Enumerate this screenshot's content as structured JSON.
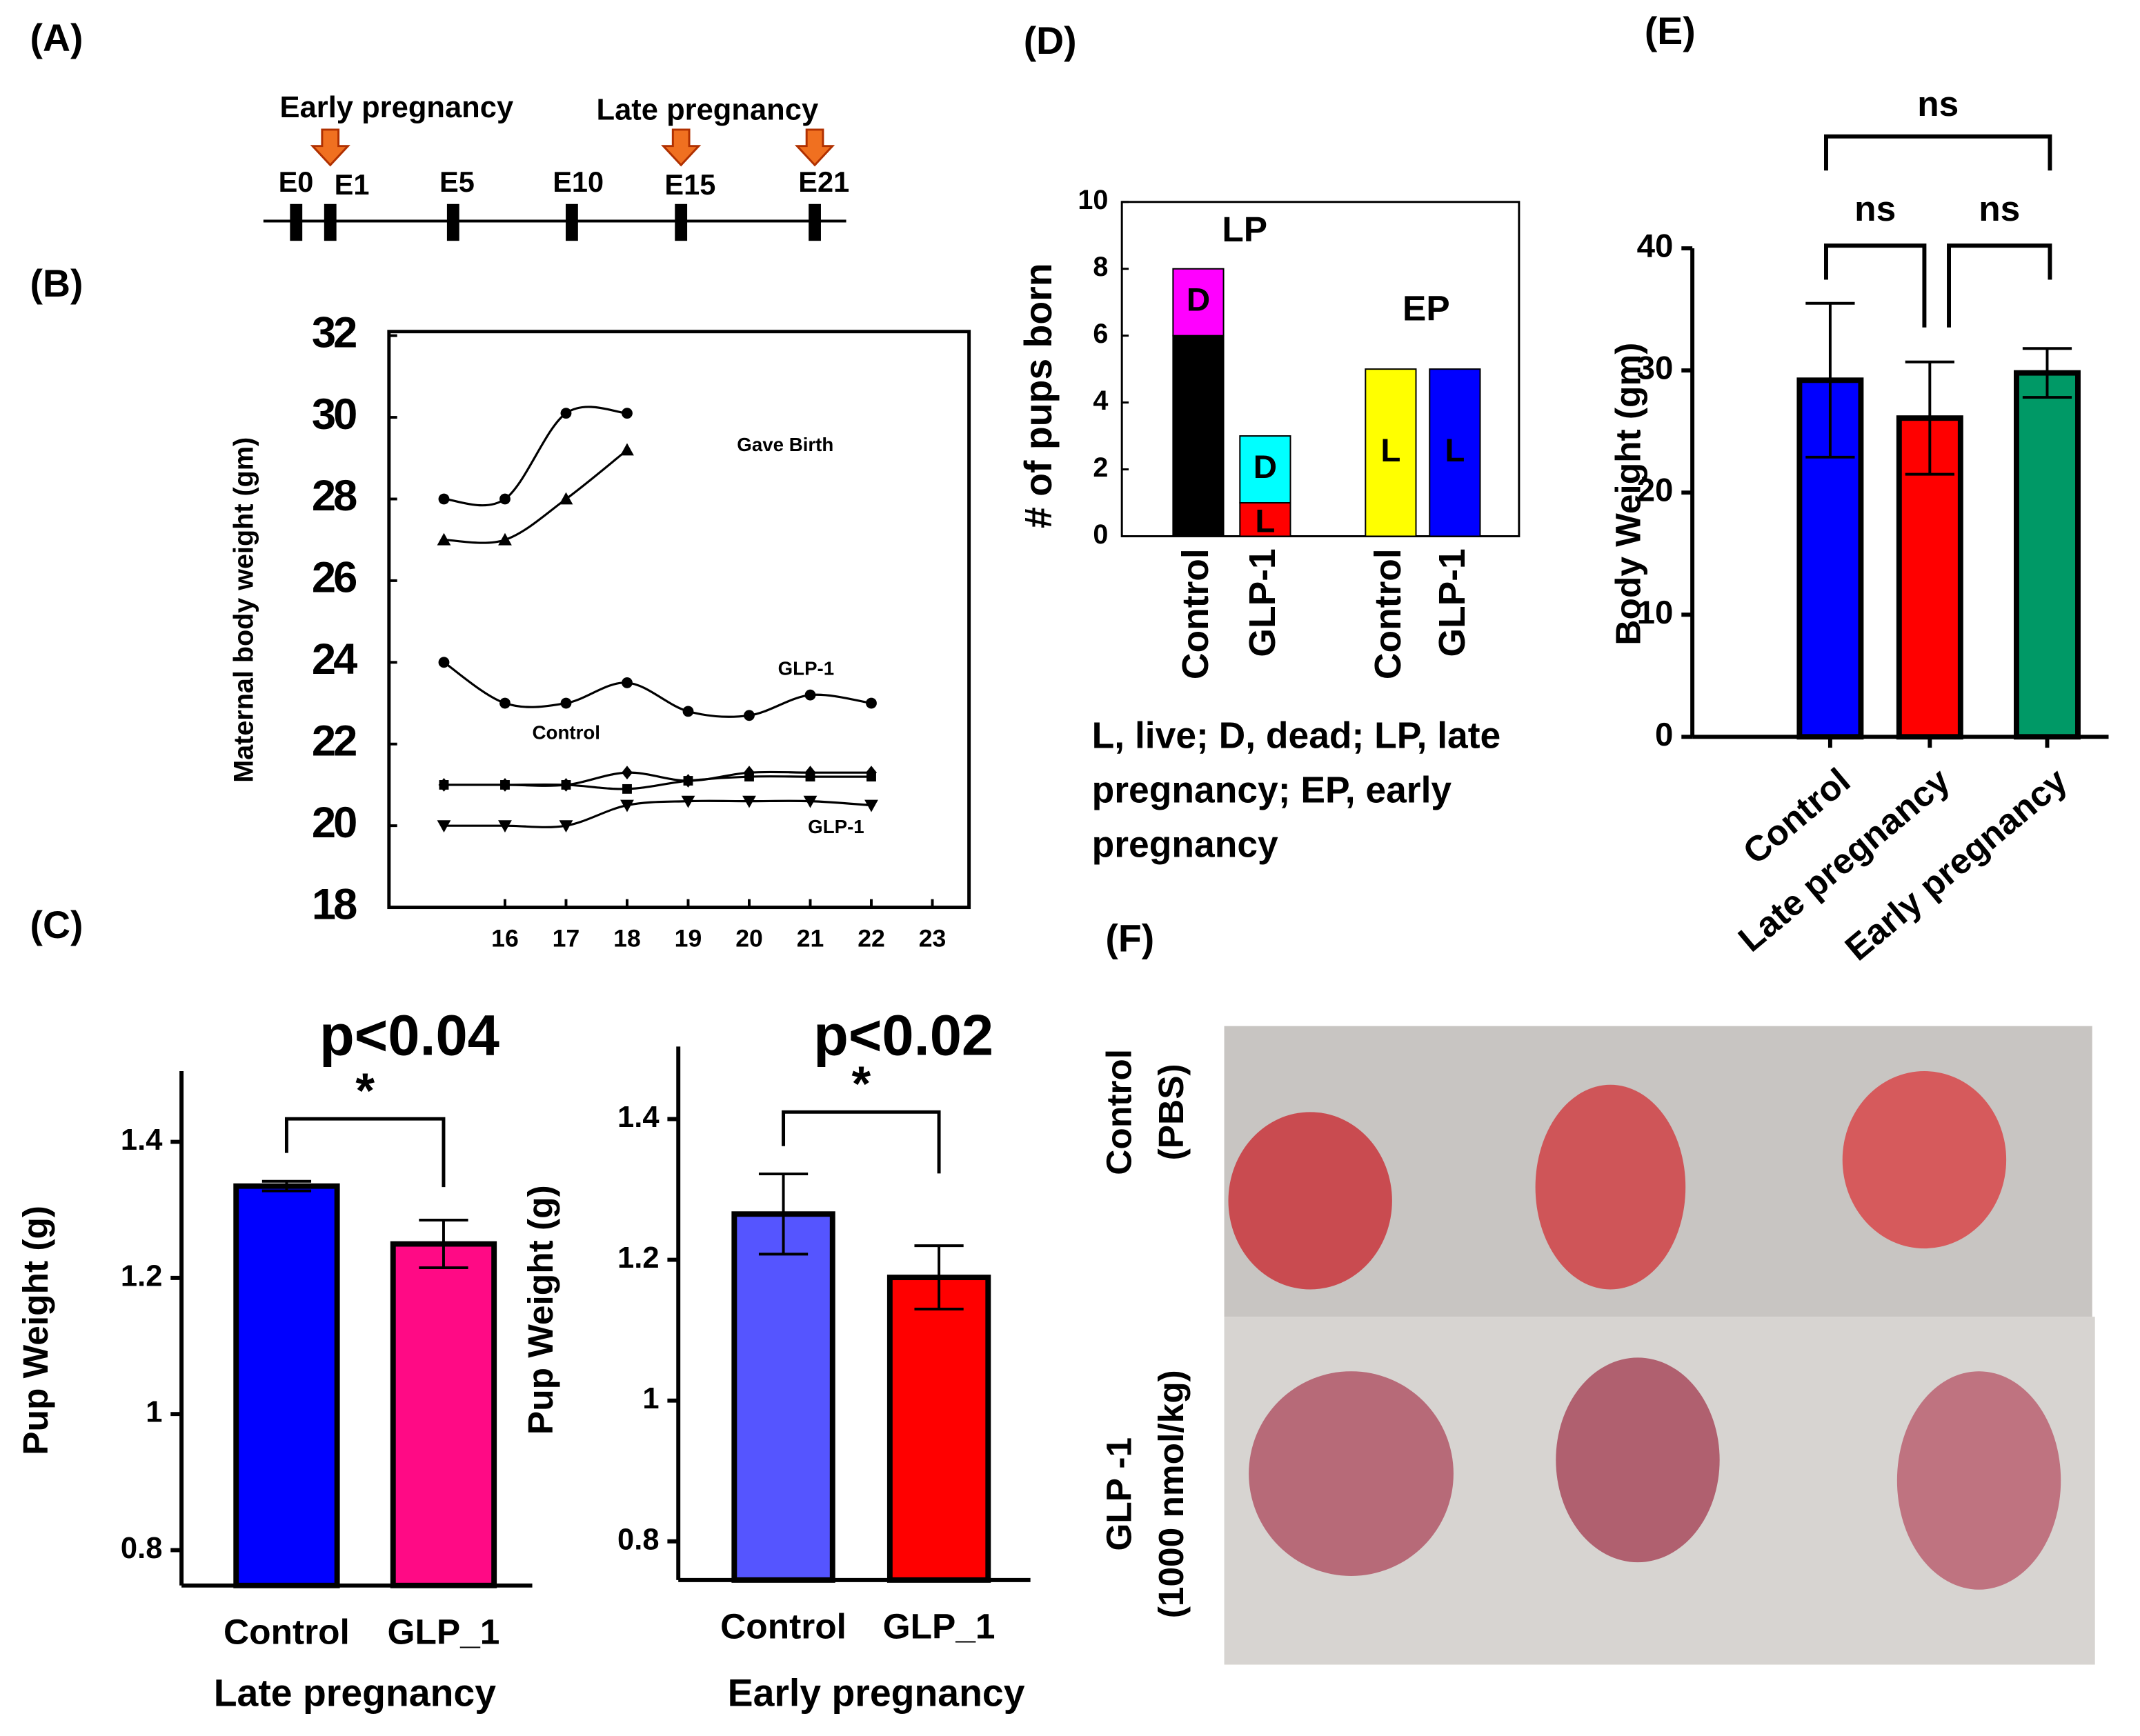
{
  "panel_labels": [
    "(A)",
    "(B)",
    "(C)",
    "(D)",
    "(E)",
    "(F)"
  ],
  "timeline": {
    "events": [
      "Early pregnancy",
      "Late pregnancy"
    ],
    "ticks": [
      "E0",
      "E1",
      "E5",
      "E10",
      "E15",
      "E21"
    ]
  },
  "chart_data": [
    {
      "type": "line",
      "ylabel": "Maternal body  weight (gm)",
      "xlim": [
        14.1,
        23.6
      ],
      "xticks": [
        16,
        17,
        18,
        19,
        20,
        21,
        22,
        23
      ],
      "ylim": [
        18,
        32.1
      ],
      "yticks": [
        18,
        20,
        22,
        24,
        26,
        28,
        30,
        32
      ],
      "x": [
        15,
        16,
        17,
        18,
        19,
        20,
        21,
        22
      ],
      "series": [
        {
          "marker": "circle",
          "color": "#000000",
          "values": [
            28,
            28,
            30.1,
            30.1,
            null,
            null,
            null,
            null
          ]
        },
        {
          "marker": "triangle",
          "color": "#000000",
          "values": [
            27,
            27,
            28,
            29.2,
            null,
            null,
            null,
            null
          ]
        },
        {
          "marker": "circle",
          "color": "#000000",
          "values": [
            24,
            23,
            23,
            23.5,
            22.8,
            22.7,
            23.2,
            23
          ]
        },
        {
          "marker": "diamond",
          "color": "#000000",
          "values": [
            21,
            21,
            21,
            21.3,
            21.1,
            21.3,
            21.3,
            21.3
          ]
        },
        {
          "marker": "square",
          "color": "#000000",
          "values": [
            21,
            21,
            21,
            20.9,
            21.1,
            21.2,
            21.2,
            21.2
          ]
        },
        {
          "marker": "triangle-down",
          "color": "#000000",
          "values": [
            20,
            20,
            20,
            20.5,
            20.6,
            20.6,
            20.6,
            20.5
          ]
        }
      ],
      "annotations": [
        "Gave Birth",
        "GLP-1",
        "Control",
        "GLP-1"
      ]
    },
    {
      "type": "bar",
      "title": "p<0.04",
      "ylabel": "Pup Weight (g)",
      "xlabel": "Late pregnancy",
      "categories": [
        "Control",
        "GLP_1"
      ],
      "values": [
        1.335,
        1.25
      ],
      "errors": [
        0.007,
        0.035
      ],
      "colors": [
        "#0000ff",
        "#ff0a85"
      ],
      "ylim": [
        0.748,
        1.504
      ],
      "yticks": [
        0.8,
        1.0,
        1.2,
        1.4
      ],
      "significance": "*"
    },
    {
      "type": "bar",
      "title": "p<0.02",
      "ylabel": "Pup Weight (g)",
      "xlabel": "Early pregnancy",
      "categories": [
        "Control",
        "GLP_1"
      ],
      "values": [
        1.265,
        1.175
      ],
      "errors": [
        0.057,
        0.045
      ],
      "colors": [
        "#5555ff",
        "#ff0000"
      ],
      "ylim": [
        0.745,
        1.503
      ],
      "yticks": [
        0.8,
        1.0,
        1.2,
        1.4
      ],
      "significance": "*"
    },
    {
      "type": "stacked-bar",
      "ylabel": "# of pups born",
      "categories": [
        "Control",
        "GLP-1",
        "Control",
        "GLP-1"
      ],
      "groups": [
        "LP",
        "EP"
      ],
      "ylim": [
        0,
        10
      ],
      "yticks": [
        0,
        2,
        4,
        6,
        8,
        10
      ],
      "series": [
        {
          "name": "L",
          "values": [
            6,
            1,
            5,
            5
          ],
          "colors": [
            "#000000",
            "#ff0000",
            "#ffff00",
            "#0000ff"
          ],
          "label_colors": [
            "#ffffff",
            "#000000",
            "#000000",
            "#ffff00"
          ]
        },
        {
          "name": "D",
          "values": [
            2,
            2,
            null,
            null
          ],
          "colors": [
            "#ff00ff",
            "#00ffff",
            null,
            null
          ],
          "label_colors": [
            "#000000",
            "#000000",
            null,
            null
          ]
        }
      ],
      "caption": [
        "L, live; D, dead; LP, late",
        "pregnancy; EP, early",
        "pregnancy"
      ]
    },
    {
      "type": "bar",
      "ylabel": "Body Weight (gm)",
      "categories": [
        "Control",
        "Late pregnancy",
        "Early pregnancy"
      ],
      "values": [
        29.2,
        26.1,
        29.8
      ],
      "errors": [
        6.3,
        4.6,
        2.0
      ],
      "colors": [
        "#0000ff",
        "#ff0000",
        "#009966"
      ],
      "ylim": [
        0,
        40
      ],
      "yticks": [
        0,
        10,
        20,
        30,
        40
      ],
      "significance": [
        "ns",
        "ns",
        "ns"
      ]
    }
  ],
  "photo": {
    "rows": [
      [
        "Control",
        "(PBS)"
      ],
      [
        "GLP -1",
        "(1000 nmol/kg)"
      ]
    ]
  }
}
